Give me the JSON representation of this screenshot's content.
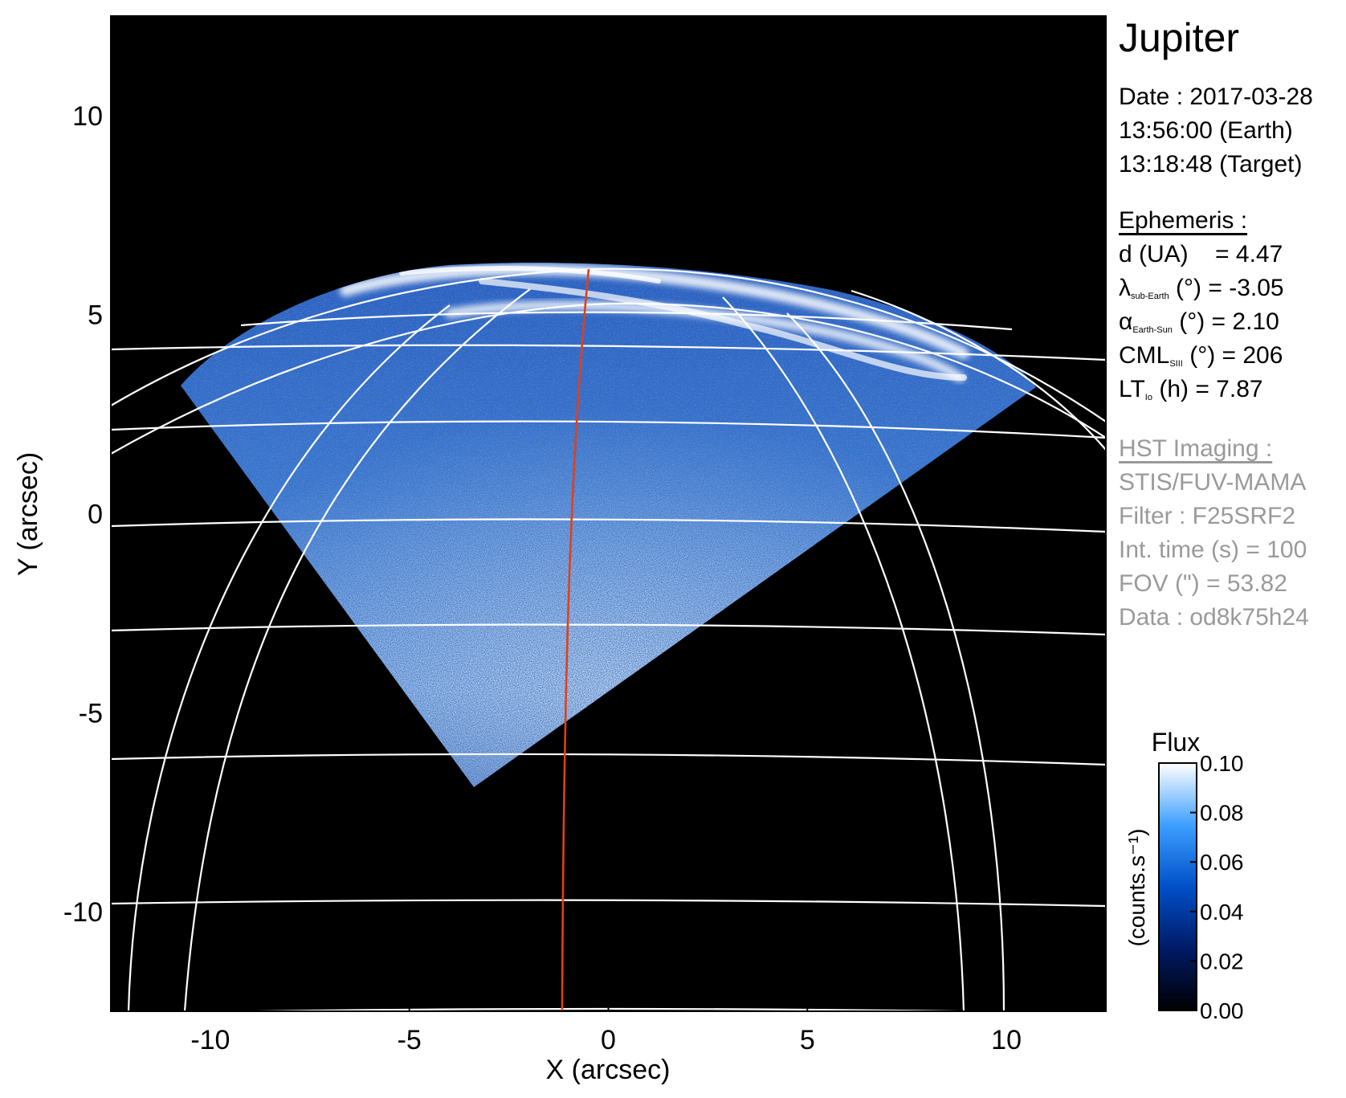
{
  "figure": {
    "xlabel": "X (arcsec)",
    "ylabel": "Y (arcsec)",
    "xlim": [
      -12.5,
      12.5
    ],
    "ylim": [
      -12.5,
      12.5
    ],
    "xticks": [
      "-10",
      "-5",
      "0",
      "5",
      "10"
    ],
    "yticks": [
      "10",
      "5",
      "0",
      "-5",
      "-10"
    ],
    "colors": {
      "background": "#000000",
      "grid": "#ffffff",
      "meridian": "#e0401a"
    }
  },
  "info": {
    "planet": "Jupiter",
    "date": "Date : 2017-03-28",
    "time_earth": "13:56:00 (Earth)",
    "time_target": "13:18:48 (Target)",
    "ephemeris_title": "Ephemeris :",
    "d_label": "d (UA)",
    "d_value": "= 4.47",
    "lambda_label": "λ",
    "lambda_sub": "sub-Earth",
    "lambda_value": "(°) = -3.05",
    "alpha_label": "α",
    "alpha_sub": "Earth-Sun",
    "alpha_value": "(°) = 2.10",
    "cml_label": "CML",
    "cml_sub": "SIII",
    "cml_value": "(°) = 206",
    "lt_label": "LT",
    "lt_sub": "Io",
    "lt_value": "(h) = 7.87",
    "hst_title": "HST Imaging :",
    "instrument": "STIS/FUV-MAMA",
    "filter": "Filter : F25SRF2",
    "int_time": "Int. time (s) = 100",
    "fov": "FOV (\") = 53.82",
    "data_id": "Data : od8k75h24"
  },
  "colorbar": {
    "title": "Flux",
    "unit": "(counts.s⁻¹)",
    "ticks": [
      "0.10",
      "0.08",
      "0.06",
      "0.04",
      "0.02",
      "0.00"
    ],
    "colors": [
      "#000000",
      "#001a66",
      "#0050c8",
      "#3da0ff",
      "#ffffff"
    ]
  }
}
